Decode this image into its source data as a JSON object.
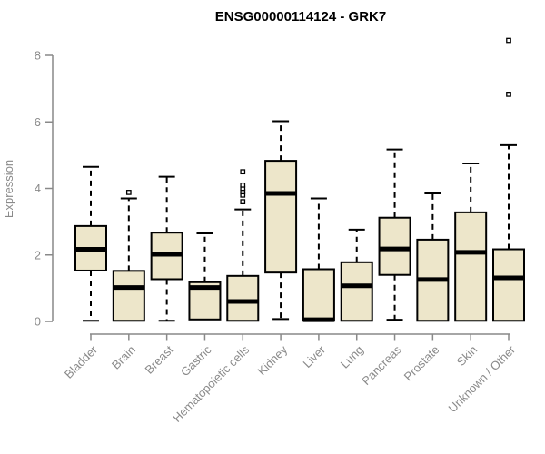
{
  "figure": {
    "background": "#ffffff"
  },
  "chart_data": {
    "type": "boxplot",
    "title": "ENSG00000114124 - GRK7",
    "ylabel": "Expression",
    "xlabel": "",
    "ylim": [
      0,
      8.6
    ],
    "yticks": [
      0,
      2,
      4,
      6,
      8
    ],
    "grid": false,
    "legend": "none",
    "colors": {
      "box_fill": "#ede6ca",
      "box_border": "#000000",
      "median": "#000000",
      "whisker": "#000000",
      "outlier": "#000000",
      "axis": "#898989",
      "tick_label": "#8a8a8a",
      "title": "#000000"
    },
    "categories": [
      "Bladder",
      "Brain",
      "Breast",
      "Gastric",
      "Hematopoietic cells",
      "Kidney",
      "Liver",
      "Lung",
      "Pancreas",
      "Prostate",
      "Skin",
      "Unknown / Other"
    ],
    "boxes": [
      {
        "category": "Bladder",
        "whisker_low": 0.02,
        "q1": 1.53,
        "median": 2.17,
        "q3": 2.87,
        "whisker_high": 4.65,
        "outliers": []
      },
      {
        "category": "Brain",
        "whisker_low": 0.02,
        "q1": 0.02,
        "median": 1.02,
        "q3": 1.52,
        "whisker_high": 3.7,
        "outliers": [
          3.88
        ]
      },
      {
        "category": "Breast",
        "whisker_low": 0.02,
        "q1": 1.27,
        "median": 2.02,
        "q3": 2.67,
        "whisker_high": 4.35,
        "outliers": []
      },
      {
        "category": "Gastric",
        "whisker_low": 0.06,
        "q1": 0.06,
        "median": 1.02,
        "q3": 1.18,
        "whisker_high": 2.65,
        "outliers": []
      },
      {
        "category": "Hematopoietic cells",
        "whisker_low": 0.02,
        "q1": 0.02,
        "median": 0.6,
        "q3": 1.37,
        "whisker_high": 3.37,
        "outliers": [
          3.6,
          3.8,
          3.9,
          4.0,
          4.1,
          4.5
        ]
      },
      {
        "category": "Kidney",
        "whisker_low": 0.07,
        "q1": 1.47,
        "median": 3.85,
        "q3": 4.83,
        "whisker_high": 6.02,
        "outliers": []
      },
      {
        "category": "Liver",
        "whisker_low": 0.02,
        "q1": 0.02,
        "median": 0.05,
        "q3": 1.57,
        "whisker_high": 3.7,
        "outliers": []
      },
      {
        "category": "Lung",
        "whisker_low": 0.02,
        "q1": 0.02,
        "median": 1.07,
        "q3": 1.78,
        "whisker_high": 2.76,
        "outliers": []
      },
      {
        "category": "Pancreas",
        "whisker_low": 0.05,
        "q1": 1.4,
        "median": 2.18,
        "q3": 3.12,
        "whisker_high": 5.17,
        "outliers": []
      },
      {
        "category": "Prostate",
        "whisker_low": 0.02,
        "q1": 0.02,
        "median": 1.26,
        "q3": 2.46,
        "whisker_high": 3.85,
        "outliers": []
      },
      {
        "category": "Skin",
        "whisker_low": 0.02,
        "q1": 0.02,
        "median": 2.08,
        "q3": 3.28,
        "whisker_high": 4.75,
        "outliers": []
      },
      {
        "category": "Unknown / Other",
        "whisker_low": 0.02,
        "q1": 0.02,
        "median": 1.31,
        "q3": 2.17,
        "whisker_high": 5.3,
        "outliers": [
          6.83,
          8.45
        ]
      }
    ]
  }
}
